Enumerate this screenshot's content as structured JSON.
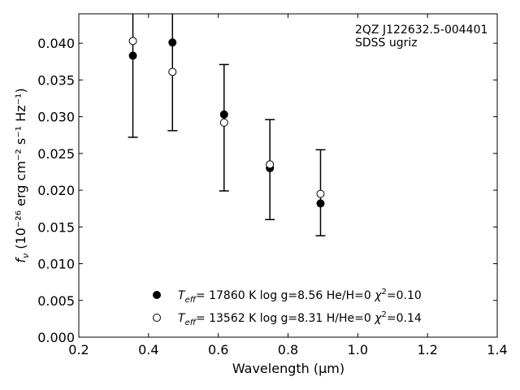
{
  "chart_data": {
    "type": "scatter",
    "title": "",
    "annotation": [
      "2QZ J122632.5-004401",
      "SDSS ugriz"
    ],
    "xlabel": "Wavelength",
    "xlabel_unit_prefix": "μm",
    "ylabel": "10⁻²⁶ erg cm⁻² s⁻¹ Hz⁻¹",
    "ylabel_symbol": "f",
    "ylabel_subscript": "ν",
    "xlim": [
      0.2,
      1.4
    ],
    "ylim": [
      0.0,
      0.044
    ],
    "xticks": [
      "0.2",
      "0.4",
      "0.6",
      "0.8",
      "1.0",
      "1.2",
      "1.4"
    ],
    "xtick_values": [
      0.2,
      0.4,
      0.6,
      0.8,
      1.0,
      1.2,
      1.4
    ],
    "yticks": [
      "0.000",
      "0.005",
      "0.010",
      "0.015",
      "0.020",
      "0.025",
      "0.030",
      "0.035",
      "0.040"
    ],
    "ytick_values": [
      0.0,
      0.005,
      0.01,
      0.015,
      0.02,
      0.025,
      0.03,
      0.035,
      0.04
    ],
    "grid": false,
    "legend_position": "bottom-center",
    "observed": {
      "x": [
        0.3551,
        0.4686,
        0.6166,
        0.748,
        0.8932
      ],
      "y": [
        0.0383,
        0.0401,
        0.0303,
        0.023,
        0.0182
      ],
      "err_low": [
        0.0272,
        0.0281,
        0.0199,
        0.016,
        0.0138
      ],
      "err_high": [
        0.051,
        0.052,
        0.0371,
        0.0296,
        0.0255
      ]
    },
    "series": [
      {
        "name": "= 17860 K  log g=8.56  He/H=0",
        "teff_symbol": "T",
        "teff_sub": "eff",
        "chi": "χ",
        "chi_sup": "2",
        "chi_value": "=0.10",
        "marker": "filled",
        "x": [
          0.3551,
          0.4686,
          0.6166,
          0.748,
          0.8932
        ],
        "y": [
          0.0383,
          0.0401,
          0.0303,
          0.023,
          0.0182
        ]
      },
      {
        "name": "= 13562 K  log g=8.31  H/He=0",
        "teff_symbol": "T",
        "teff_sub": "eff",
        "chi": "χ",
        "chi_sup": "2",
        "chi_value": "=0.14",
        "marker": "open",
        "x": [
          0.3551,
          0.4686,
          0.6166,
          0.748,
          0.8932
        ],
        "y": [
          0.0403,
          0.0361,
          0.0292,
          0.0235,
          0.0195
        ]
      }
    ]
  }
}
